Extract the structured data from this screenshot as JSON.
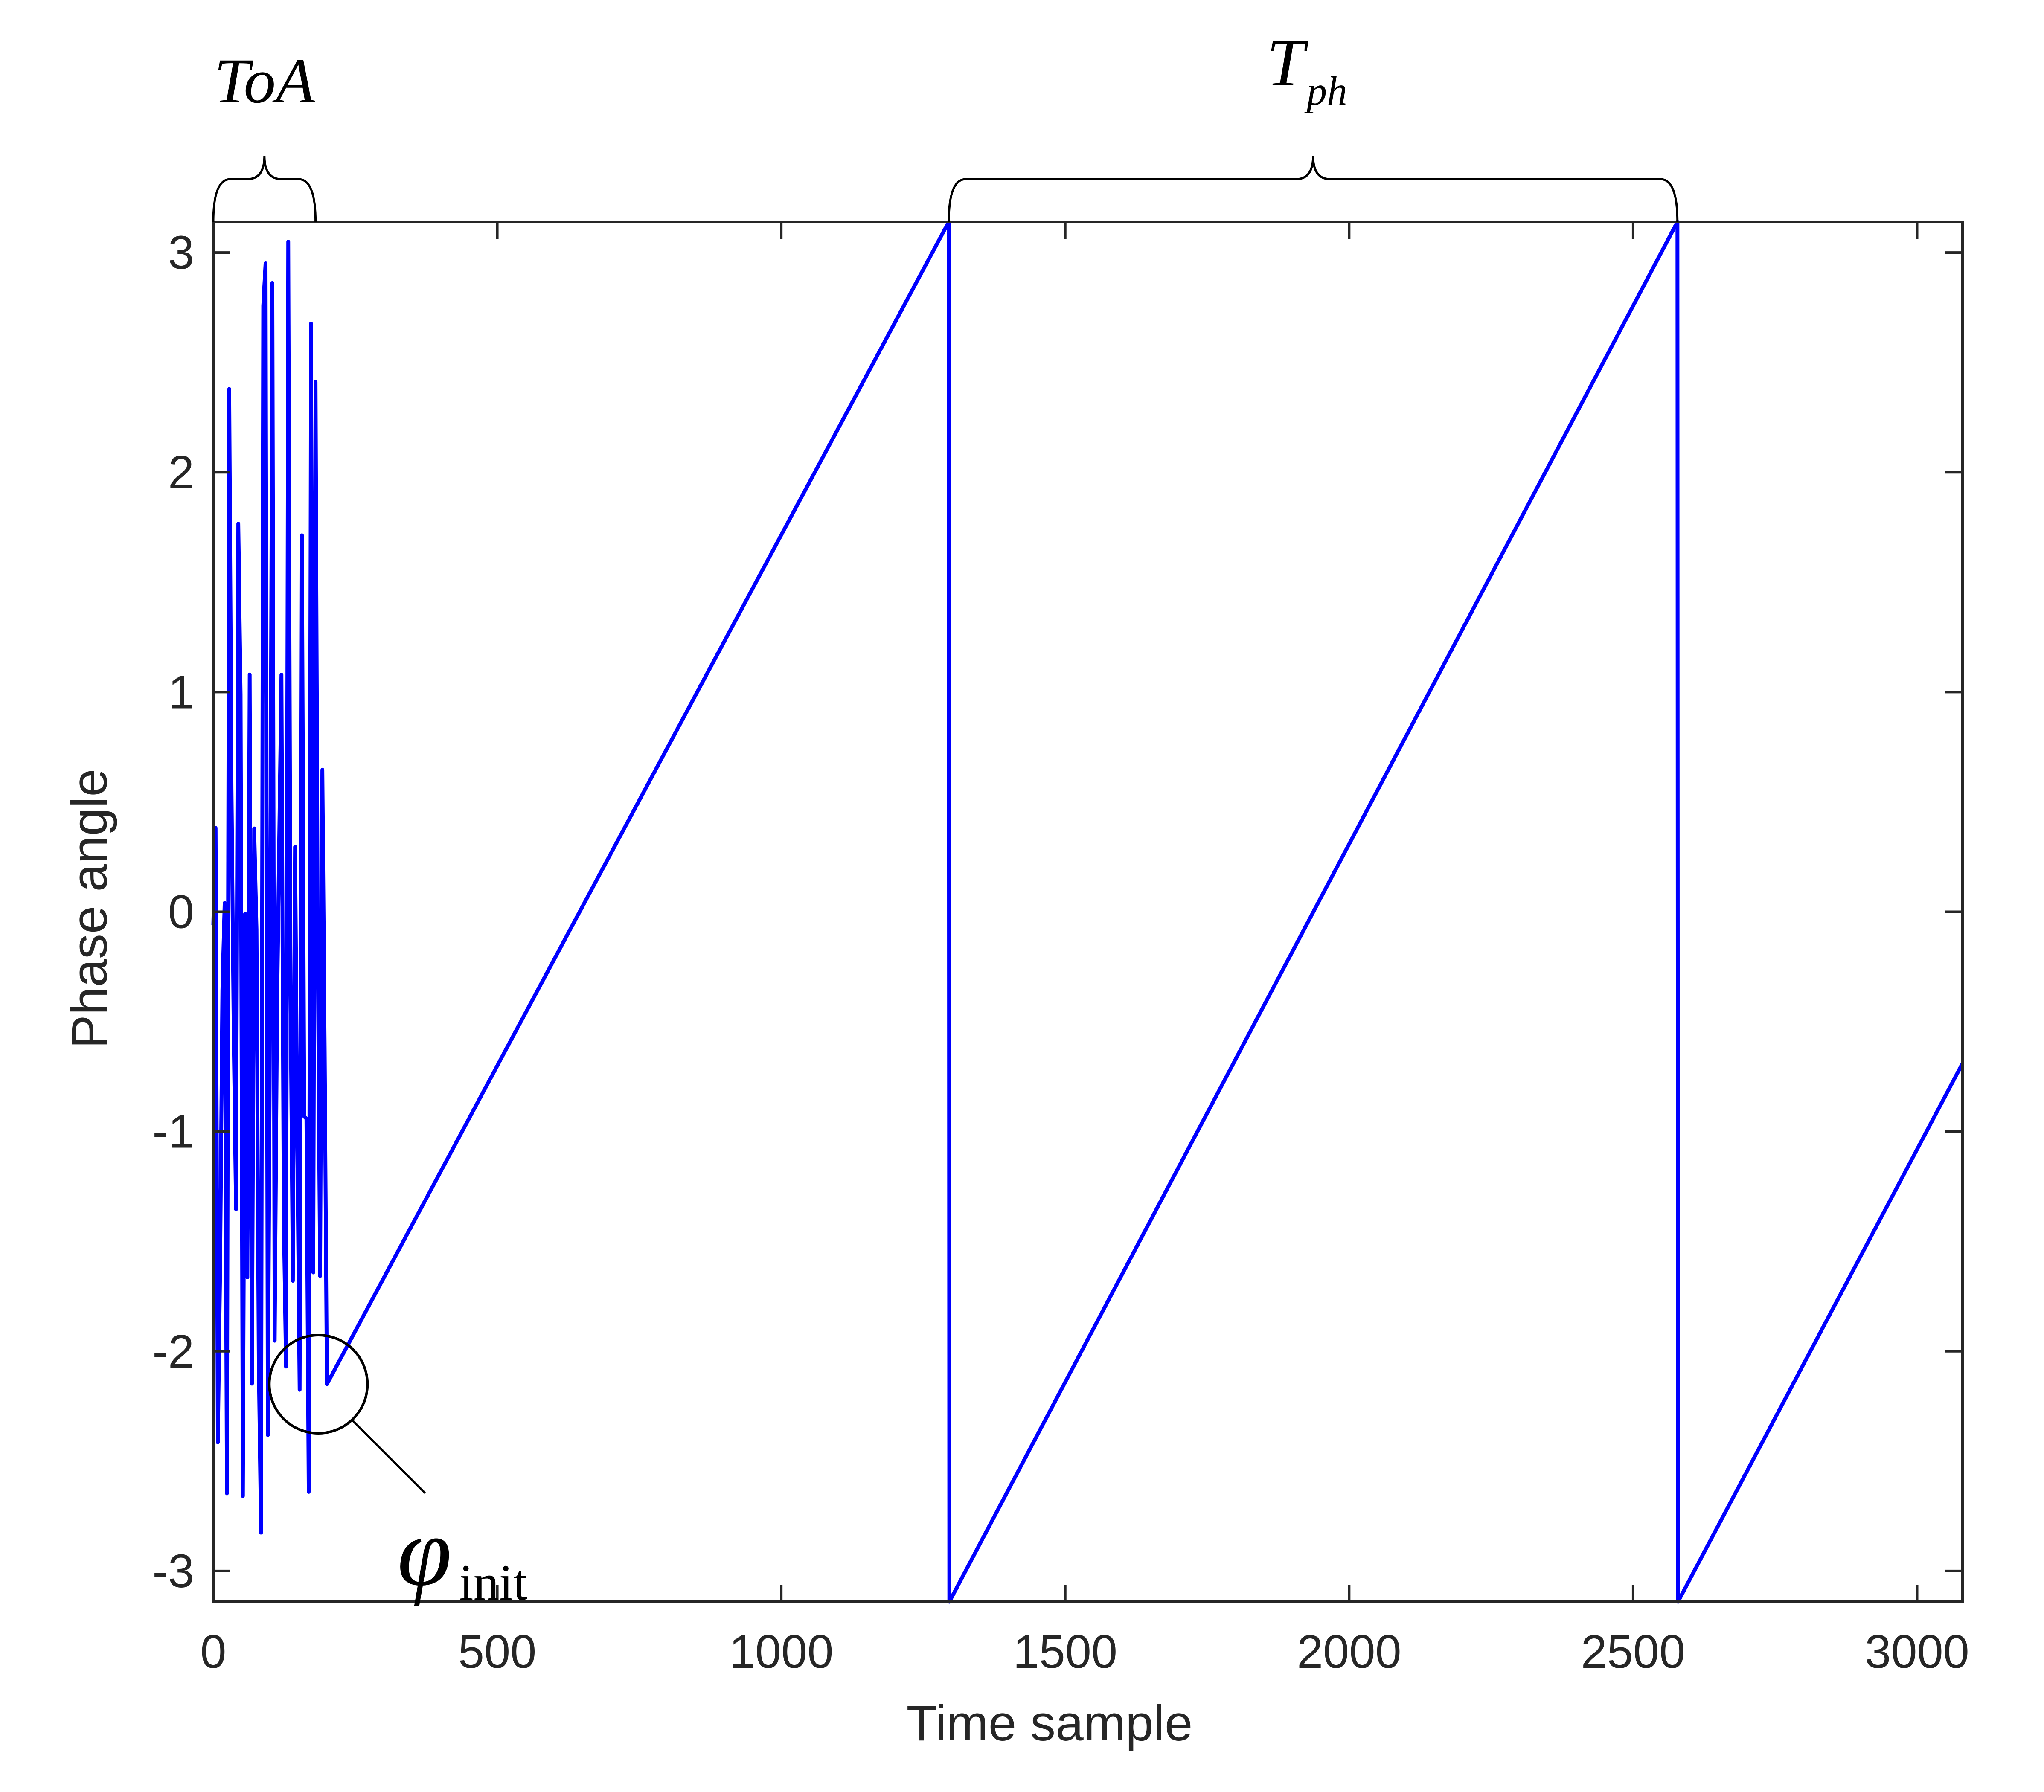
{
  "chart_data": {
    "type": "line",
    "xlabel": "Time sample",
    "ylabel": "Phase angle",
    "xlim": [
      0,
      3080
    ],
    "ylim": [
      -3.14,
      3.14
    ],
    "xticks": [
      0,
      500,
      1000,
      1500,
      2000,
      2500,
      3000
    ],
    "yticks": [
      -3,
      -2,
      -1,
      0,
      1,
      2,
      3
    ],
    "grid": false,
    "line_color": "#0000ff",
    "series": [
      {
        "noise_segment": {
          "x_start": 0,
          "x_end": 200,
          "y_min": -3.14,
          "y_max": 3.14
        },
        "ramp_points": [
          [
            200,
            -2.15
          ],
          [
            1295,
            3.14
          ],
          [
            1296,
            -3.14
          ],
          [
            2578,
            3.14
          ],
          [
            2579,
            -3.14
          ],
          [
            3080,
            -0.69
          ]
        ]
      }
    ],
    "annotations": {
      "toa": {
        "label": "ToA",
        "x_range": [
          0,
          180
        ]
      },
      "tph": {
        "base": "T",
        "sub": "ph",
        "x_range": [
          1295,
          2578
        ]
      },
      "phi_init": {
        "symbol": "φ",
        "sub": "init",
        "x": 185,
        "y": -2.15
      }
    }
  }
}
